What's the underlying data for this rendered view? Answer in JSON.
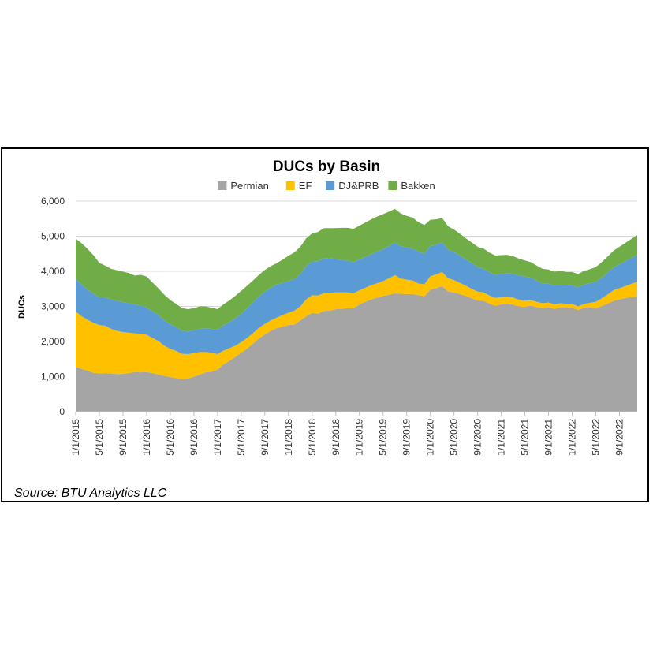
{
  "chart_data": {
    "type": "area",
    "stacked": true,
    "title": "DUCs by Basin",
    "ylabel": "DUCs",
    "xlabel": "",
    "ylim": [
      0,
      6000
    ],
    "yticks": [
      "0",
      "1,000",
      "2,000",
      "3,000",
      "4,000",
      "5,000",
      "6,000"
    ],
    "ytick_values": [
      0,
      1000,
      2000,
      3000,
      4000,
      5000,
      6000
    ],
    "xticks": [
      "1/1/2015",
      "5/1/2015",
      "9/1/2015",
      "1/1/2016",
      "5/1/2016",
      "9/1/2016",
      "1/1/2017",
      "5/1/2017",
      "9/1/2017",
      "1/1/2018",
      "5/1/2018",
      "9/1/2018",
      "1/1/2019",
      "5/1/2019",
      "9/1/2019",
      "1/1/2020",
      "5/1/2020",
      "9/1/2020",
      "1/1/2021",
      "5/1/2021",
      "9/1/2021",
      "1/1/2022",
      "5/1/2022",
      "9/1/2022"
    ],
    "x": [
      "1/1/2015",
      "2/1/2015",
      "3/1/2015",
      "4/1/2015",
      "5/1/2015",
      "6/1/2015",
      "7/1/2015",
      "8/1/2015",
      "9/1/2015",
      "10/1/2015",
      "11/1/2015",
      "12/1/2015",
      "1/1/2016",
      "2/1/2016",
      "3/1/2016",
      "4/1/2016",
      "5/1/2016",
      "6/1/2016",
      "7/1/2016",
      "8/1/2016",
      "9/1/2016",
      "10/1/2016",
      "11/1/2016",
      "12/1/2016",
      "1/1/2017",
      "2/1/2017",
      "3/1/2017",
      "4/1/2017",
      "5/1/2017",
      "6/1/2017",
      "7/1/2017",
      "8/1/2017",
      "9/1/2017",
      "10/1/2017",
      "11/1/2017",
      "12/1/2017",
      "1/1/2018",
      "2/1/2018",
      "3/1/2018",
      "4/1/2018",
      "5/1/2018",
      "6/1/2018",
      "7/1/2018",
      "8/1/2018",
      "9/1/2018",
      "10/1/2018",
      "11/1/2018",
      "12/1/2018",
      "1/1/2019",
      "2/1/2019",
      "3/1/2019",
      "4/1/2019",
      "5/1/2019",
      "6/1/2019",
      "7/1/2019",
      "8/1/2019",
      "9/1/2019",
      "10/1/2019",
      "11/1/2019",
      "12/1/2019",
      "1/1/2020",
      "2/1/2020",
      "3/1/2020",
      "4/1/2020",
      "5/1/2020",
      "6/1/2020",
      "7/1/2020",
      "8/1/2020",
      "9/1/2020",
      "10/1/2020",
      "11/1/2020",
      "12/1/2020",
      "1/1/2021",
      "2/1/2021",
      "3/1/2021",
      "4/1/2021",
      "5/1/2021",
      "6/1/2021",
      "7/1/2021",
      "8/1/2021",
      "9/1/2021",
      "10/1/2021",
      "11/1/2021",
      "12/1/2021",
      "1/1/2022",
      "2/1/2022",
      "3/1/2022",
      "4/1/2022",
      "5/1/2022",
      "6/1/2022",
      "7/1/2022",
      "8/1/2022",
      "9/1/2022",
      "10/1/2022",
      "11/1/2022",
      "12/1/2022"
    ],
    "series": [
      {
        "name": "Permian",
        "color": "#A5A5A5",
        "values": [
          1280,
          1220,
          1170,
          1110,
          1090,
          1100,
          1090,
          1070,
          1080,
          1100,
          1130,
          1120,
          1130,
          1100,
          1060,
          1020,
          990,
          960,
          920,
          950,
          1000,
          1060,
          1120,
          1140,
          1200,
          1350,
          1450,
          1560,
          1680,
          1800,
          1940,
          2090,
          2200,
          2300,
          2380,
          2420,
          2470,
          2480,
          2600,
          2720,
          2820,
          2790,
          2870,
          2880,
          2920,
          2930,
          2950,
          2950,
          3060,
          3130,
          3200,
          3250,
          3300,
          3330,
          3370,
          3360,
          3350,
          3350,
          3320,
          3290,
          3480,
          3520,
          3580,
          3420,
          3400,
          3350,
          3300,
          3230,
          3170,
          3160,
          3080,
          3020,
          3060,
          3080,
          3050,
          3000,
          2990,
          3020,
          2980,
          2950,
          2970,
          2930,
          2970,
          2960,
          2960,
          2900,
          2960,
          2970,
          2950,
          3010,
          3080,
          3160,
          3200,
          3240,
          3260,
          3280
        ]
      },
      {
        "name": "EF",
        "color": "#FFC000",
        "values": [
          1570,
          1500,
          1450,
          1420,
          1380,
          1350,
          1270,
          1230,
          1190,
          1150,
          1100,
          1100,
          1060,
          1000,
          950,
          860,
          800,
          770,
          730,
          690,
          670,
          640,
          580,
          540,
          440,
          390,
          360,
          320,
          300,
          300,
          300,
          300,
          300,
          300,
          300,
          330,
          350,
          400,
          400,
          480,
          500,
          520,
          510,
          500,
          480,
          470,
          450,
          420,
          400,
          400,
          400,
          410,
          420,
          470,
          520,
          430,
          410,
          390,
          330,
          340,
          380,
          390,
          400,
          380,
          350,
          320,
          290,
          270,
          250,
          240,
          230,
          220,
          200,
          200,
          200,
          190,
          170,
          160,
          150,
          140,
          140,
          130,
          120,
          110,
          110,
          100,
          110,
          130,
          180,
          220,
          260,
          300,
          320,
          340,
          380,
          420
        ]
      },
      {
        "name": "DJ&PRB",
        "color": "#5B9BD5",
        "values": [
          930,
          900,
          860,
          830,
          790,
          810,
          830,
          860,
          850,
          840,
          820,
          810,
          780,
          760,
          740,
          720,
          700,
          680,
          650,
          640,
          650,
          660,
          680,
          680,
          700,
          720,
          740,
          780,
          810,
          850,
          870,
          890,
          920,
          930,
          940,
          920,
          900,
          900,
          920,
          950,
          960,
          980,
          1000,
          990,
          950,
          920,
          900,
          890,
          880,
          880,
          890,
          900,
          910,
          920,
          930,
          930,
          920,
          910,
          900,
          880,
          860,
          850,
          840,
          820,
          800,
          780,
          750,
          730,
          700,
          680,
          660,
          650,
          660,
          670,
          680,
          690,
          690,
          640,
          600,
          560,
          540,
          530,
          530,
          530,
          530,
          540,
          550,
          560,
          570,
          590,
          620,
          650,
          680,
          710,
          740,
          770
        ]
      },
      {
        "name": "Bakken",
        "color": "#70AD47",
        "values": [
          1150,
          1180,
          1160,
          1100,
          980,
          900,
          880,
          870,
          870,
          860,
          830,
          870,
          880,
          820,
          760,
          730,
          690,
          660,
          650,
          640,
          630,
          640,
          620,
          600,
          580,
          600,
          620,
          640,
          650,
          640,
          630,
          620,
          620,
          620,
          610,
          660,
          720,
          760,
          780,
          790,
          800,
          830,
          850,
          860,
          880,
          920,
          940,
          950,
          960,
          980,
          990,
          1000,
          1000,
          980,
          960,
          930,
          900,
          880,
          850,
          810,
          750,
          720,
          700,
          660,
          640,
          620,
          600,
          590,
          580,
          570,
          560,
          560,
          540,
          520,
          500,
          480,
          460,
          440,
          430,
          420,
          400,
          400,
          390,
          380,
          380,
          380,
          390,
          400,
          420,
          440,
          460,
          480,
          500,
          520,
          540,
          560
        ]
      }
    ]
  },
  "source": "Source: BTU Analytics LLC"
}
